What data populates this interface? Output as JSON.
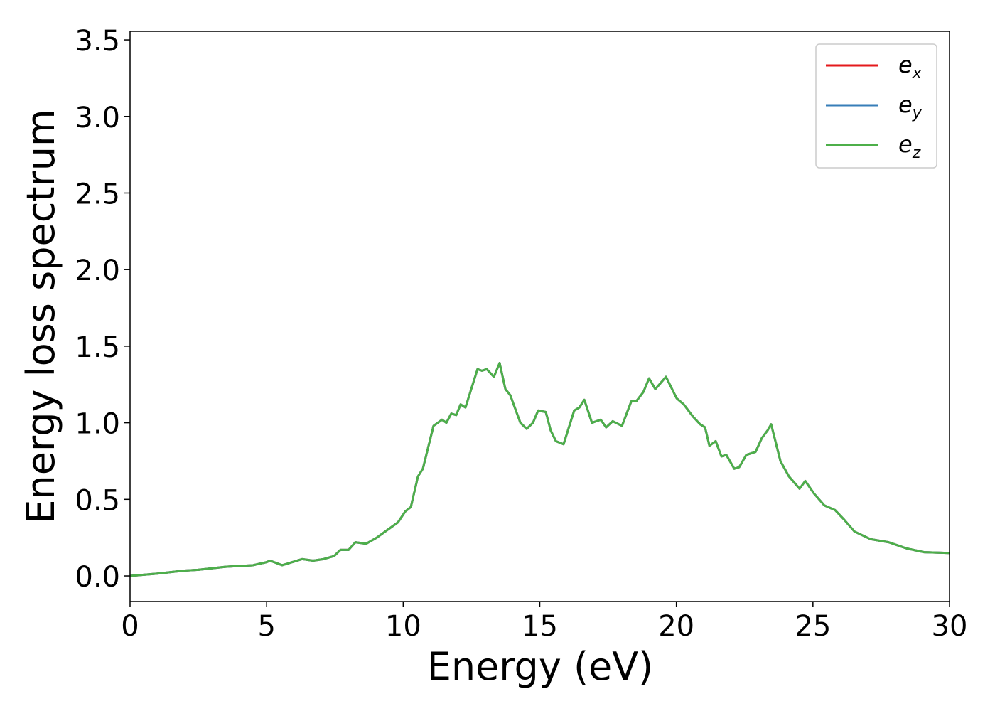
{
  "chart_data": {
    "type": "line",
    "xlabel": "Energy (eV)",
    "ylabel": "Energy loss spectrum",
    "x": [
      0,
      1,
      2,
      2.5,
      3,
      3.5,
      4,
      4.5,
      5,
      5.12,
      5.57,
      6.3,
      6.7,
      7.08,
      7.47,
      7.7,
      8.0,
      8.25,
      8.64,
      9.03,
      9.42,
      9.81,
      10.07,
      10.28,
      10.54,
      10.72,
      11.11,
      11.42,
      11.58,
      11.76,
      11.94,
      12.1,
      12.28,
      12.72,
      12.88,
      13.06,
      13.32,
      13.53,
      13.74,
      13.92,
      14.29,
      14.52,
      14.75,
      14.94,
      15.22,
      15.4,
      15.59,
      15.87,
      16.26,
      16.45,
      16.63,
      16.91,
      17.23,
      17.43,
      17.67,
      18.01,
      18.35,
      18.53,
      18.79,
      19.0,
      19.23,
      19.62,
      20.01,
      20.27,
      20.61,
      20.87,
      21.05,
      21.21,
      21.44,
      21.65,
      21.83,
      22.12,
      22.3,
      22.56,
      22.9,
      23.13,
      23.34,
      23.47,
      23.81,
      24.12,
      24.51,
      24.72,
      25.03,
      25.42,
      25.81,
      26.13,
      26.52,
      27.11,
      27.77,
      28.42,
      29.07,
      30
    ],
    "series": [
      {
        "name": "ex",
        "color": "#e41a1c",
        "values": [
          0,
          0.015,
          0.035,
          0.04,
          0.05,
          0.06,
          0.065,
          0.07,
          0.09,
          0.1,
          0.07,
          0.11,
          0.1,
          0.11,
          0.13,
          0.17,
          0.17,
          0.22,
          0.21,
          0.25,
          0.3,
          0.35,
          0.42,
          0.45,
          0.65,
          0.7,
          0.98,
          1.02,
          1.0,
          1.06,
          1.05,
          1.12,
          1.1,
          1.35,
          1.34,
          1.35,
          1.3,
          1.39,
          1.22,
          1.18,
          1.0,
          0.96,
          1.0,
          1.08,
          1.07,
          0.95,
          0.88,
          0.86,
          1.08,
          1.1,
          1.15,
          1.0,
          1.02,
          0.97,
          1.01,
          0.98,
          1.14,
          1.14,
          1.2,
          1.29,
          1.22,
          1.3,
          1.16,
          1.12,
          1.04,
          0.99,
          0.97,
          0.85,
          0.88,
          0.78,
          0.79,
          0.7,
          0.71,
          0.79,
          0.81,
          0.9,
          0.95,
          0.99,
          0.75,
          0.65,
          0.57,
          0.62,
          0.54,
          0.46,
          0.43,
          0.37,
          0.29,
          0.24,
          0.22,
          0.18,
          0.155,
          0.15
        ]
      },
      {
        "name": "ey",
        "color": "#377eb8",
        "values": [
          0,
          0.015,
          0.035,
          0.04,
          0.05,
          0.06,
          0.065,
          0.07,
          0.09,
          0.1,
          0.07,
          0.11,
          0.1,
          0.11,
          0.13,
          0.17,
          0.17,
          0.22,
          0.21,
          0.25,
          0.3,
          0.35,
          0.42,
          0.45,
          0.65,
          0.7,
          0.98,
          1.02,
          1.0,
          1.06,
          1.05,
          1.12,
          1.1,
          1.35,
          1.34,
          1.35,
          1.3,
          1.39,
          1.22,
          1.18,
          1.0,
          0.96,
          1.0,
          1.08,
          1.07,
          0.95,
          0.88,
          0.86,
          1.08,
          1.1,
          1.15,
          1.0,
          1.02,
          0.97,
          1.01,
          0.98,
          1.14,
          1.14,
          1.2,
          1.29,
          1.22,
          1.3,
          1.16,
          1.12,
          1.04,
          0.99,
          0.97,
          0.85,
          0.88,
          0.78,
          0.79,
          0.7,
          0.71,
          0.79,
          0.81,
          0.9,
          0.95,
          0.99,
          0.75,
          0.65,
          0.57,
          0.62,
          0.54,
          0.46,
          0.43,
          0.37,
          0.29,
          0.24,
          0.22,
          0.18,
          0.155,
          0.15
        ]
      },
      {
        "name": "ez",
        "color": "#4daf4a",
        "values": [
          0,
          0.015,
          0.035,
          0.04,
          0.05,
          0.06,
          0.065,
          0.07,
          0.09,
          0.1,
          0.07,
          0.11,
          0.1,
          0.11,
          0.13,
          0.17,
          0.17,
          0.22,
          0.21,
          0.25,
          0.3,
          0.35,
          0.42,
          0.45,
          0.65,
          0.7,
          0.98,
          1.02,
          1.0,
          1.06,
          1.05,
          1.12,
          1.1,
          1.35,
          1.34,
          1.35,
          1.3,
          1.39,
          1.22,
          1.18,
          1.0,
          0.96,
          1.0,
          1.08,
          1.07,
          0.95,
          0.88,
          0.86,
          1.08,
          1.1,
          1.15,
          1.0,
          1.02,
          0.97,
          1.01,
          0.98,
          1.14,
          1.14,
          1.2,
          1.29,
          1.22,
          1.3,
          1.16,
          1.12,
          1.04,
          0.99,
          0.97,
          0.85,
          0.88,
          0.78,
          0.79,
          0.7,
          0.71,
          0.79,
          0.81,
          0.9,
          0.95,
          0.99,
          0.75,
          0.65,
          0.57,
          0.62,
          0.54,
          0.46,
          0.43,
          0.37,
          0.29,
          0.24,
          0.22,
          0.18,
          0.155,
          0.15
        ]
      }
    ],
    "xlim": [
      0,
      30
    ],
    "xticks": [
      0,
      5,
      10,
      15,
      20,
      25,
      30
    ],
    "ylim": [
      -0.167,
      3.556
    ],
    "yticks": [
      {
        "value": 0,
        "label": "0.0"
      },
      {
        "value": 0.5,
        "label": "0.5"
      },
      {
        "value": 1,
        "label": "1.0"
      },
      {
        "value": 1.5,
        "label": "1.5"
      },
      {
        "value": 2,
        "label": "2.0"
      },
      {
        "value": 2.5,
        "label": "2.5"
      },
      {
        "value": 3,
        "label": "3.0"
      },
      {
        "value": 3.5,
        "label": "3.5"
      }
    ],
    "grid": false,
    "legend": "upper right"
  }
}
